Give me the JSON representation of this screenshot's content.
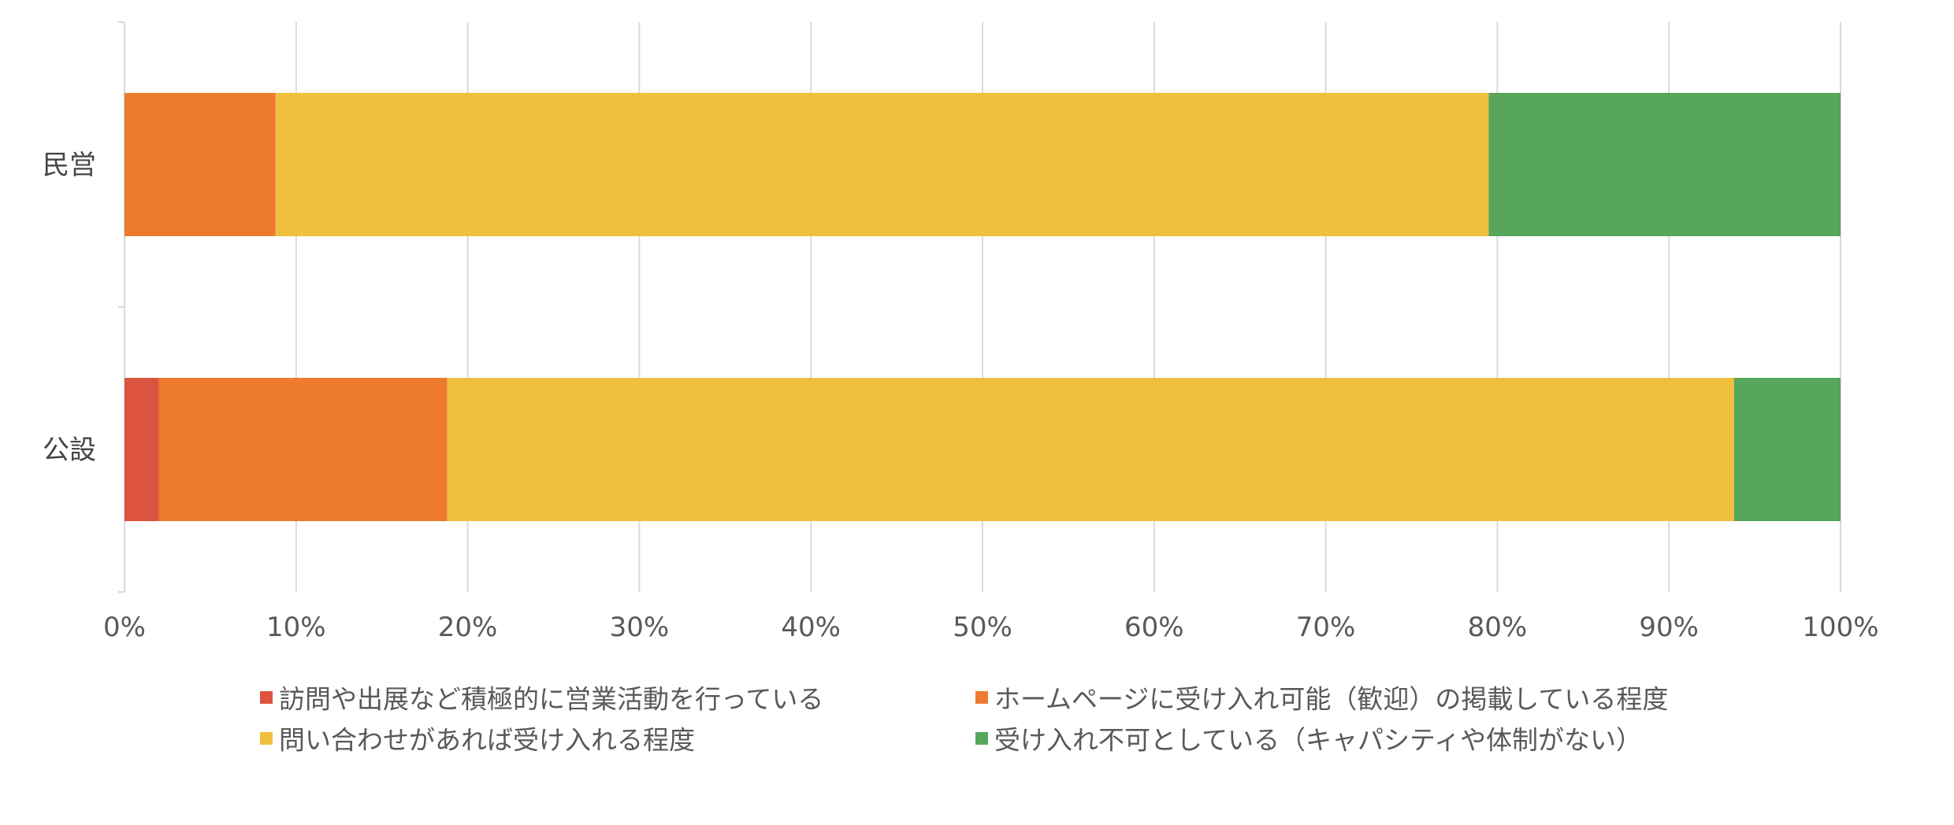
{
  "chart_data": {
    "type": "bar",
    "orientation": "horizontal",
    "stacked": true,
    "percent": true,
    "title": "",
    "xlabel": "",
    "ylabel": "",
    "categories": [
      "民営",
      "公設"
    ],
    "xlim": [
      0,
      100
    ],
    "xticks": [
      "0%",
      "10%",
      "20%",
      "30%",
      "40%",
      "50%",
      "60%",
      "70%",
      "80%",
      "90%",
      "100%"
    ],
    "grid": true,
    "legend": "bottom",
    "series": [
      {
        "name": "訪問や出展など積極的に営業活動を行っている",
        "color": "#dc5440",
        "values": [
          0,
          2
        ]
      },
      {
        "name": "ホームページに受け入れ可能（歓迎）の掲載している程度",
        "color": "#ee7a2e",
        "values": [
          8.8,
          16.8
        ]
      },
      {
        "name": "問い合わせがあれば受け入れる程度",
        "color": "#efbf3d",
        "values": [
          70.7,
          75
        ]
      },
      {
        "name": "受け入れ不可としている（キャパシティや体制がない）",
        "color": "#57a65b",
        "values": [
          20.5,
          6.2
        ]
      }
    ]
  }
}
